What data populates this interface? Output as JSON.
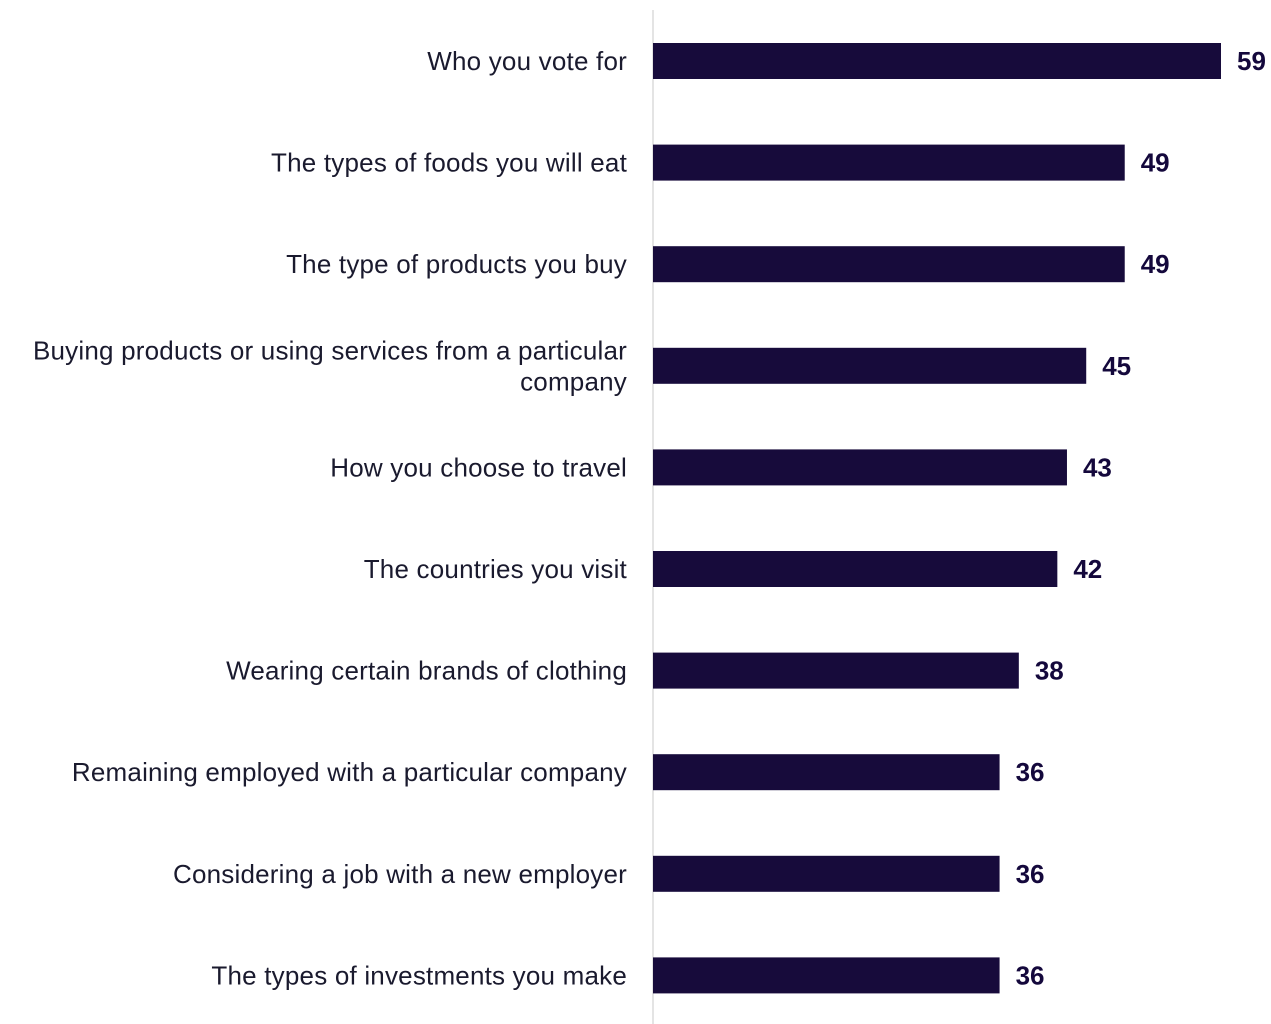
{
  "chart_data": {
    "type": "bar",
    "orientation": "horizontal",
    "title": "",
    "xlabel": "",
    "ylabel": "",
    "categories": [
      "Who you vote for",
      "The types of foods you will eat",
      "The type of products you buy",
      "Buying products or using services from a particular company",
      "How you choose to travel",
      "The countries you visit",
      "Wearing certain brands of clothing",
      "Remaining employed with a particular company",
      "Considering a job with a new employer",
      "The types of investments you make"
    ],
    "label_lines": [
      [
        "Who you vote for"
      ],
      [
        "The types of foods you will eat"
      ],
      [
        "The type of products you buy"
      ],
      [
        "Buying products or using services from a particular",
        "company"
      ],
      [
        "How you choose to travel"
      ],
      [
        "The countries you visit"
      ],
      [
        "Wearing certain brands of clothing"
      ],
      [
        "Remaining employed with a particular company"
      ],
      [
        "Considering a job with a new employer"
      ],
      [
        "The types of investments you make"
      ]
    ],
    "values": [
      59,
      49,
      49,
      45,
      43,
      42,
      38,
      36,
      36,
      36
    ],
    "xlim": [
      0,
      59
    ],
    "grid": false,
    "legend": "none",
    "bar_color": "#170b3b",
    "axis_color": "#c8c8c8"
  }
}
